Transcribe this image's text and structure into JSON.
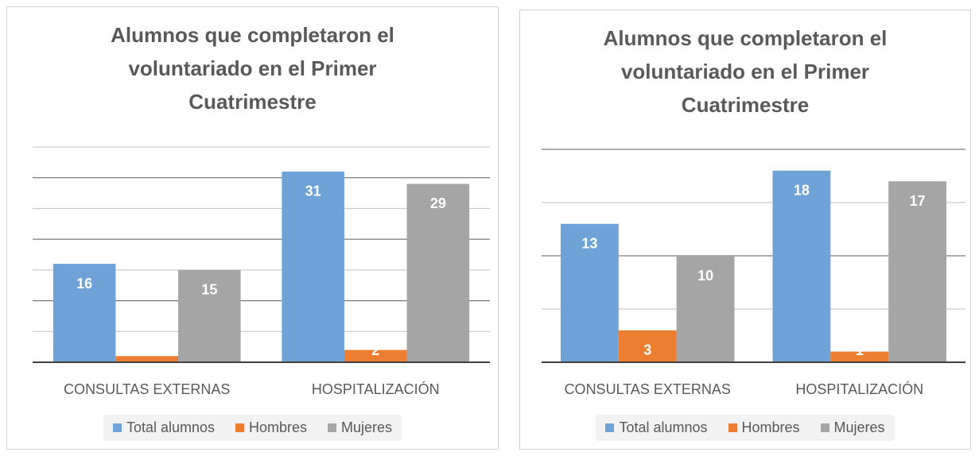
{
  "chart_data": [
    {
      "type": "bar",
      "title": "Alumnos que completaron el voluntariado en el Primer Cuatrimestre",
      "categories": [
        "CONSULTAS EXTERNAS",
        "HOSPITALIZACIÓN"
      ],
      "series": [
        {
          "name": "Total alumnos",
          "color": "#6fa3d8",
          "values": [
            16,
            31
          ]
        },
        {
          "name": "Hombres",
          "color": "#ed7d31",
          "values": [
            1,
            2
          ]
        },
        {
          "name": "Mujeres",
          "color": "#a5a5a5",
          "values": [
            15,
            29
          ]
        }
      ],
      "ylim": [
        0,
        35
      ],
      "yticks": [
        0,
        5,
        10,
        15,
        20,
        25,
        30,
        35
      ],
      "grid": true,
      "legend": "bottom"
    },
    {
      "type": "bar",
      "title": "Alumnos que completaron el voluntariado en el Primer Cuatrimestre",
      "categories": [
        "CONSULTAS EXTERNAS",
        "HOSPITALIZACIÓN"
      ],
      "series": [
        {
          "name": "Total alumnos",
          "color": "#6fa3d8",
          "values": [
            13,
            18
          ]
        },
        {
          "name": "Hombres",
          "color": "#ed7d31",
          "values": [
            3,
            1
          ]
        },
        {
          "name": "Mujeres",
          "color": "#a5a5a5",
          "values": [
            10,
            17
          ]
        }
      ],
      "ylim": [
        0,
        20
      ],
      "yticks": [
        0,
        5,
        10,
        15,
        20
      ],
      "grid": true,
      "legend": "bottom"
    }
  ]
}
